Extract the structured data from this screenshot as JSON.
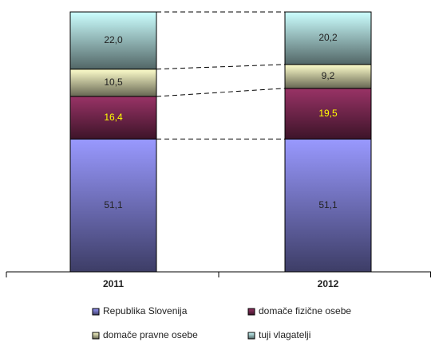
{
  "chart_data": {
    "type": "stacked_bar",
    "categories": [
      "2011",
      "2012"
    ],
    "series": [
      {
        "name": "Republika Slovenija",
        "color": "#9999ff",
        "label_color": "#222222",
        "values": [
          51.1,
          51.1
        ],
        "value_labels": [
          "51,1",
          "51,1"
        ]
      },
      {
        "name": "domače fizične osebe",
        "color": "#993366",
        "label_color": "#ffff00",
        "values": [
          16.4,
          19.5
        ],
        "value_labels": [
          "16,4",
          "19,5"
        ]
      },
      {
        "name": "domače pravne osebe",
        "color": "#ffffcc",
        "label_color": "#222222",
        "values": [
          10.5,
          9.2
        ],
        "value_labels": [
          "10,5",
          "9,2"
        ]
      },
      {
        "name": "tuji vlagatelji",
        "color": "#ccffff",
        "label_color": "#222222",
        "values": [
          22.0,
          20.2
        ],
        "value_labels": [
          "22,0",
          "20,2"
        ]
      }
    ]
  }
}
